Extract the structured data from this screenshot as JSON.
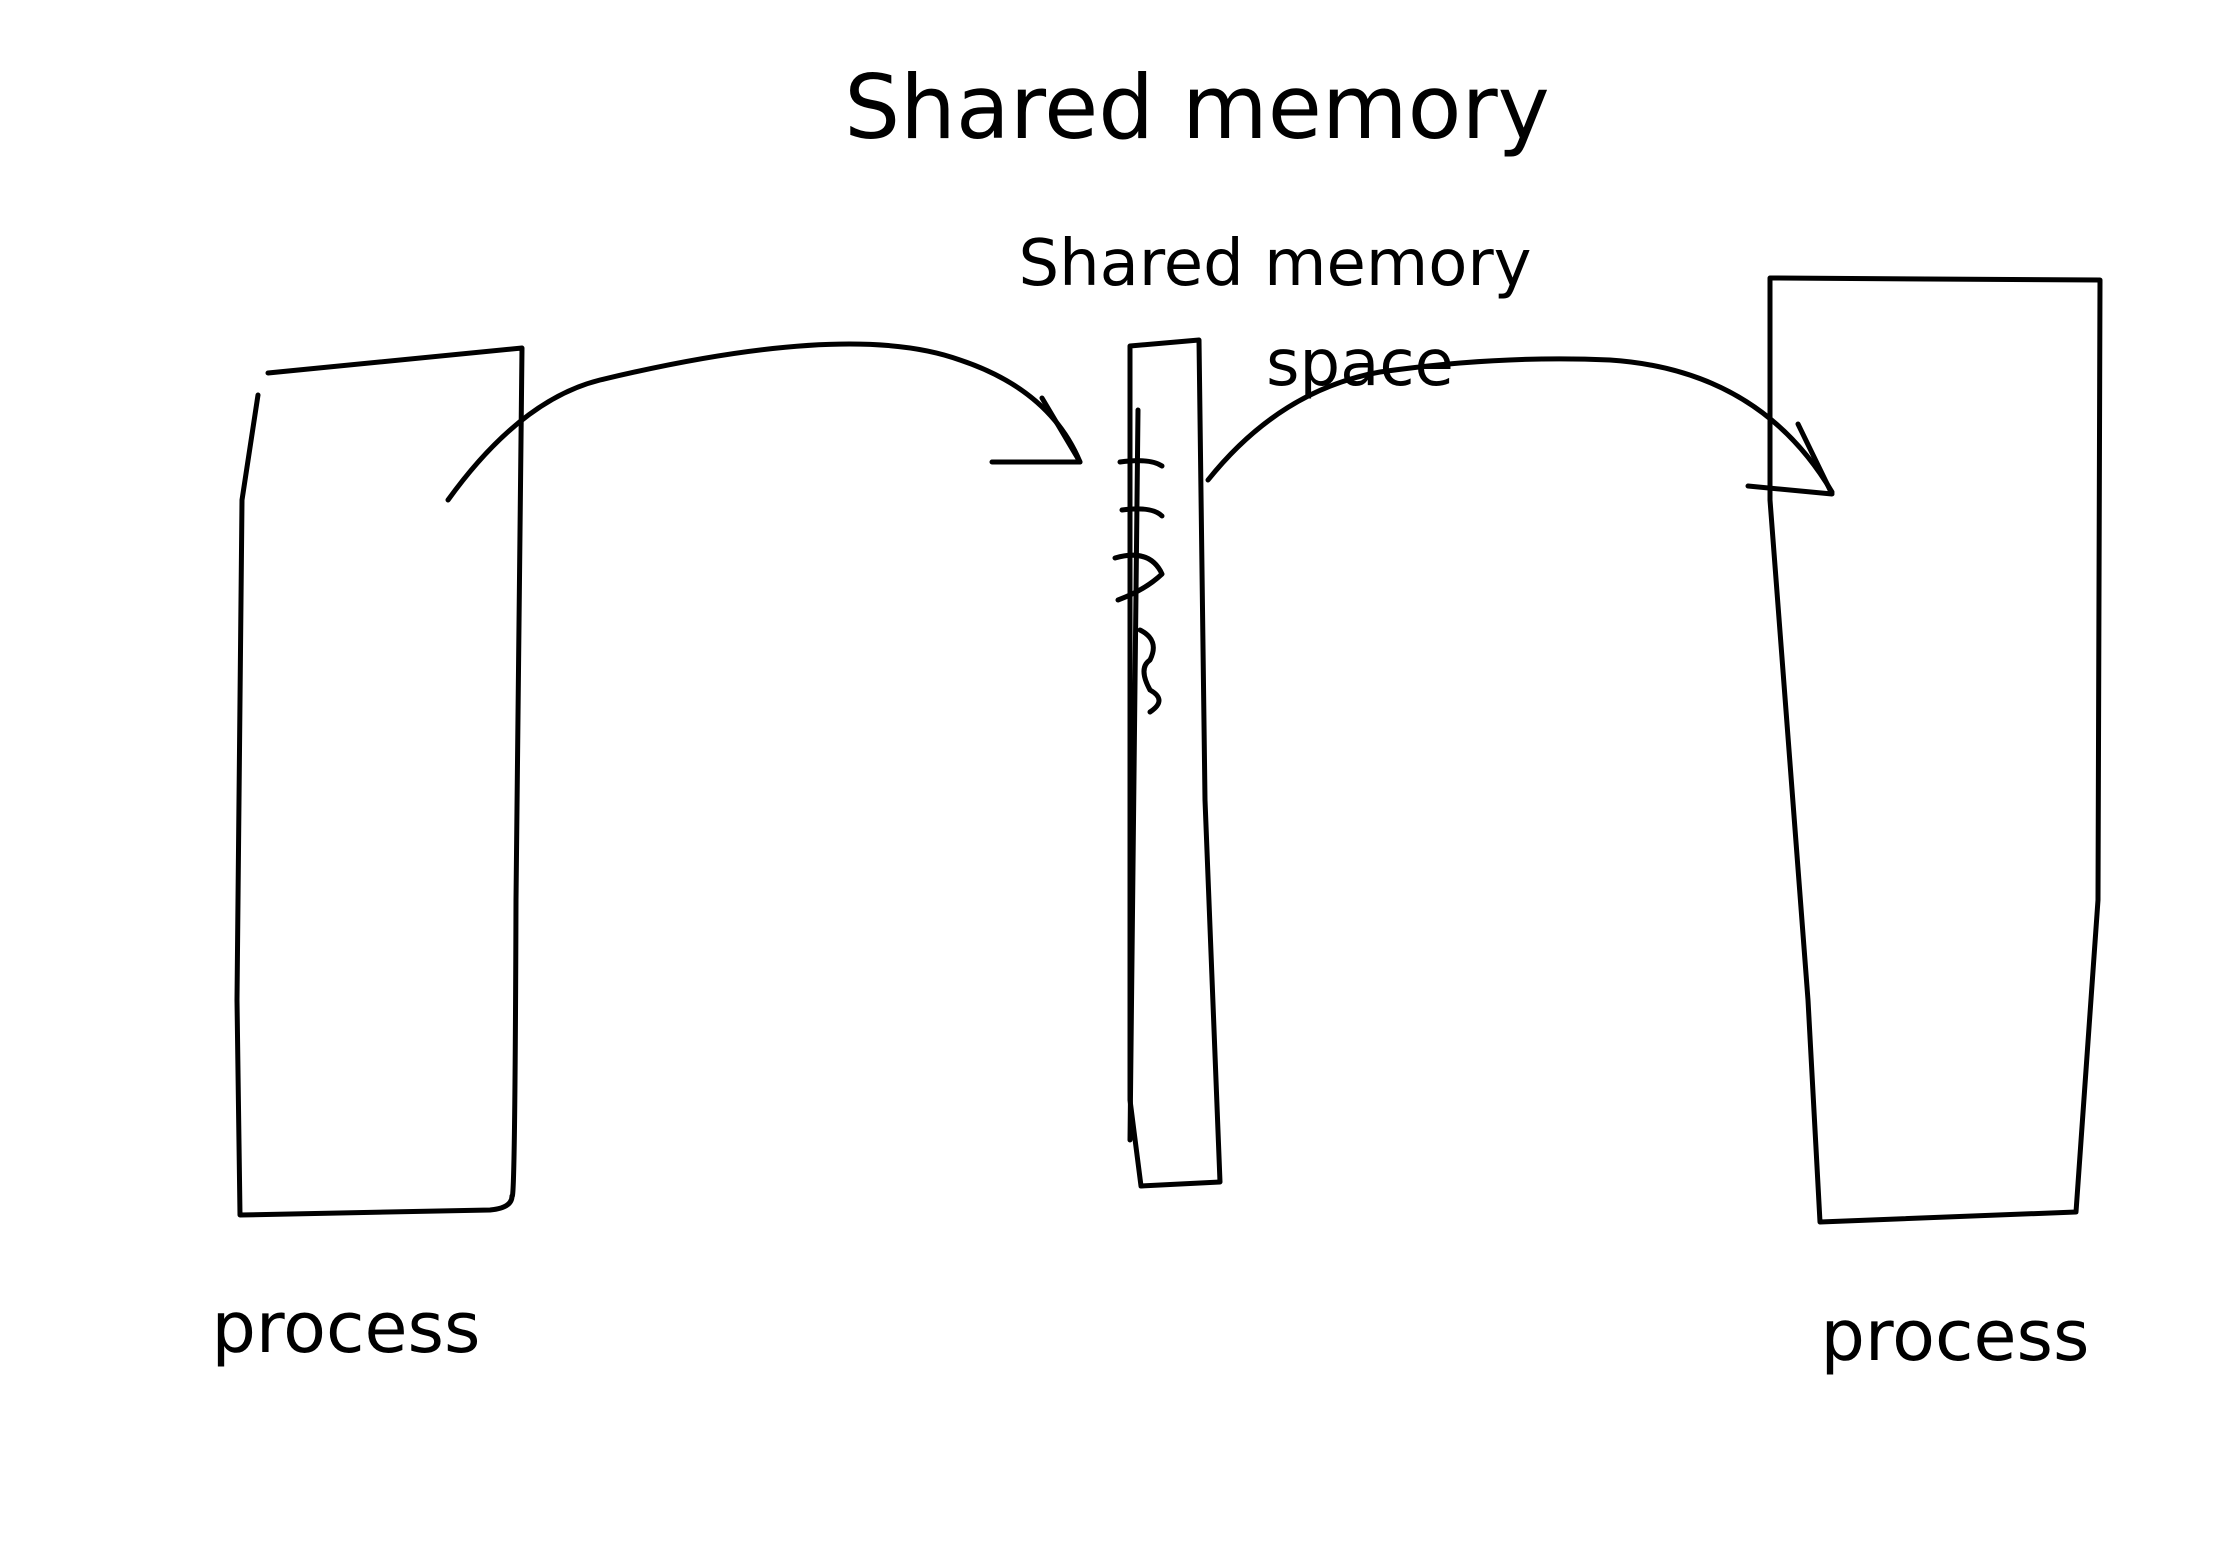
{
  "diagram": {
    "title": "Shared memory",
    "shared_label_line1": "Shared memory",
    "shared_label_line2": "space",
    "left_process_label": "process",
    "right_process_label": "process"
  },
  "colors": {
    "background": "#ffffff",
    "ink": "#000000"
  }
}
